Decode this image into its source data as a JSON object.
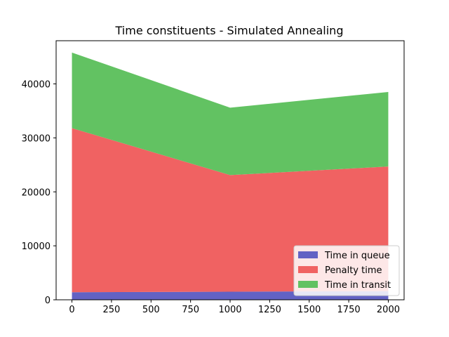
{
  "chart_data": {
    "type": "area",
    "stacked": true,
    "title": "Time constituents - Simulated Annealing",
    "xlabel": "",
    "ylabel": "",
    "x": [
      0,
      1000,
      2000
    ],
    "series": [
      {
        "name": "Time in queue",
        "values": [
          1400,
          1500,
          1600
        ],
        "color": "#6262c4"
      },
      {
        "name": "Penalty time",
        "values": [
          30400,
          21600,
          23100
        ],
        "color": "#f06262"
      },
      {
        "name": "Time in transit",
        "values": [
          14000,
          12500,
          13800
        ],
        "color": "#62c262"
      }
    ],
    "xlim": [
      -100,
      2100
    ],
    "ylim": [
      0,
      48000
    ],
    "xticks": [
      0,
      250,
      500,
      750,
      1000,
      1250,
      1500,
      1750,
      2000
    ],
    "yticks": [
      0,
      10000,
      20000,
      30000,
      40000
    ],
    "legend_position": "lower-right",
    "grid": false
  }
}
